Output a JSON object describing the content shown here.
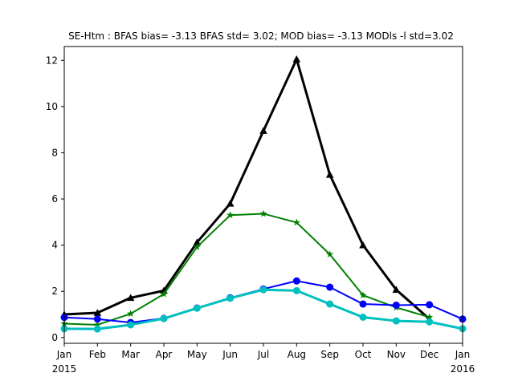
{
  "chart_data": {
    "type": "line",
    "title": "SE-Htm   : BFAS bias= -3.13 BFAS std= 3.02; MOD bias= -3.13 MODls -l std=3.02",
    "xlabel": "",
    "ylabel": "",
    "x_tick_labels": [
      "Jan",
      "Feb",
      "Mar",
      "Apr",
      "May",
      "Jun",
      "Jul",
      "Aug",
      "Sep",
      "Oct",
      "Nov",
      "Dec",
      "Jan"
    ],
    "x_year_labels": [
      {
        "index": 0,
        "label": "2015"
      },
      {
        "index": 12,
        "label": "2016"
      }
    ],
    "y_ticks": [
      0,
      2,
      4,
      6,
      8,
      10,
      12
    ],
    "xlim": [
      0,
      12
    ],
    "ylim": [
      -0.25,
      12.6
    ],
    "grid": false,
    "legend": "none",
    "series": [
      {
        "color": "#000000",
        "marker": "triangle",
        "line_width": 3,
        "x": [
          0,
          1,
          2,
          3,
          4,
          5,
          6,
          7,
          8,
          9,
          10,
          11
        ],
        "values": [
          1.0,
          1.07,
          1.72,
          2.03,
          4.12,
          5.8,
          8.95,
          12.05,
          7.05,
          4.0,
          2.07,
          0.8
        ]
      },
      {
        "color": "#008000",
        "marker": "star",
        "line_width": 2,
        "x": [
          0,
          1,
          2,
          3,
          4,
          5,
          6,
          7,
          8,
          9,
          10,
          11
        ],
        "values": [
          0.6,
          0.55,
          1.03,
          1.88,
          3.92,
          5.3,
          5.36,
          4.98,
          3.6,
          1.83,
          1.3,
          0.88
        ]
      },
      {
        "color": "#0000ff",
        "marker": "circle",
        "line_width": 2,
        "x": [
          0,
          1,
          2,
          3,
          4,
          5,
          6,
          7,
          8,
          9,
          10,
          11,
          12
        ],
        "values": [
          0.87,
          0.8,
          0.65,
          0.83,
          1.28,
          1.72,
          2.1,
          2.45,
          2.18,
          1.45,
          1.4,
          1.42,
          0.8
        ]
      },
      {
        "color": "#00bfbf",
        "marker": "circle",
        "line_width": 3,
        "x": [
          0,
          1,
          2,
          3,
          4,
          5,
          6,
          7,
          8,
          9,
          10,
          11,
          12
        ],
        "values": [
          0.38,
          0.37,
          0.55,
          0.82,
          1.27,
          1.7,
          2.07,
          2.03,
          1.45,
          0.88,
          0.72,
          0.68,
          0.38
        ]
      }
    ]
  }
}
